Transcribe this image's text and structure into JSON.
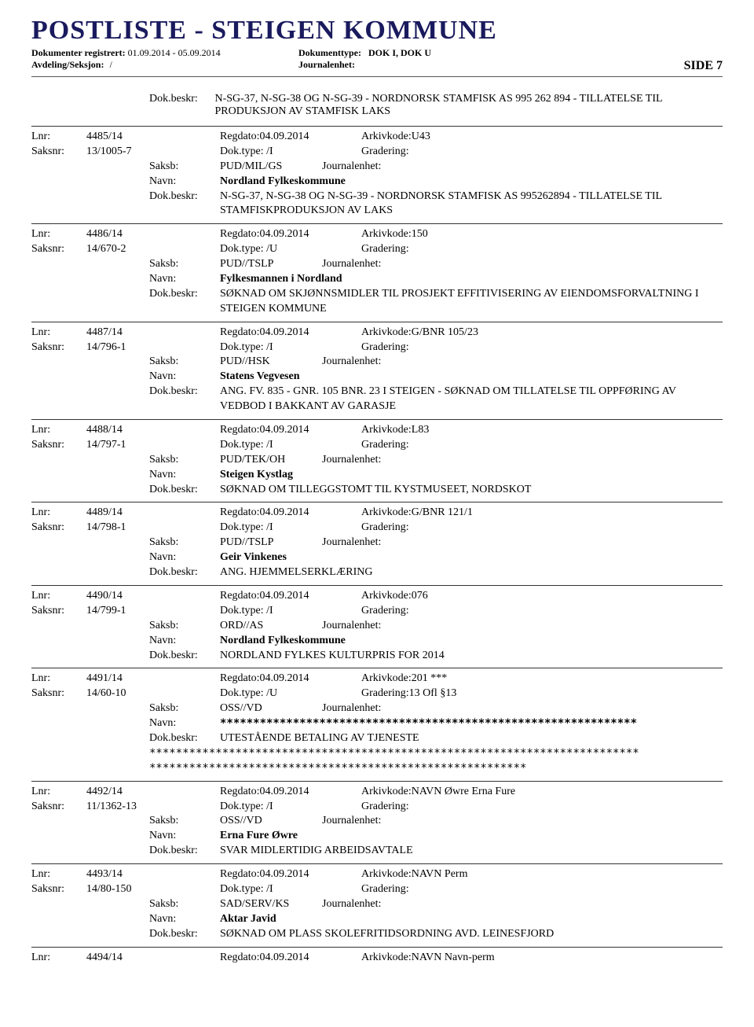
{
  "header": {
    "title": "POSTLISTE - STEIGEN KOMMUNE",
    "dok_reg_label": "Dokumenter registrert:",
    "dok_reg_value": "01.09.2014 - 05.09.2014",
    "avd_label": "Avdeling/Seksjon:",
    "avd_value": "/",
    "doktype_label": "Dokumenttype:",
    "doktype_value": "DOK I, DOK U",
    "journ_label": "Journalenhet:",
    "side": "SIDE 7"
  },
  "topbeskr": {
    "label": "Dok.beskr:",
    "text": "N-SG-37, N-SG-38 OG N-SG-39 - NORDNORSK STAMFISK AS 995 262 894 - TILLATELSE TIL PRODUKSJON AV STAMFISK LAKS"
  },
  "labels": {
    "lnr": "Lnr:",
    "saksnr": "Saksnr:",
    "saksb": "Saksb:",
    "navn": "Navn:",
    "beskr": "Dok.beskr:",
    "regdato": "Regdato:",
    "doktype": "Dok.type:",
    "arkiv": "Arkivkode:",
    "grad": "Gradering:",
    "journ": "Journalenhet:"
  },
  "entries": [
    {
      "lnr": "4485/14",
      "saksnr": "13/1005-7",
      "regdato": "04.09.2014",
      "doktype": "/I",
      "arkiv": "U43",
      "grad": "",
      "saksb": "PUD/MIL/GS",
      "journ": "",
      "navn": "Nordland Fylkeskommune",
      "beskr": "N-SG-37, N-SG-38 OG N-SG-39 - NORDNORSK STAMFISK AS 995262894 - TILLATELSE TIL STAMFISKPRODUKSJON AV LAKS"
    },
    {
      "lnr": "4486/14",
      "saksnr": "14/670-2",
      "regdato": "04.09.2014",
      "doktype": "/U",
      "arkiv": "150",
      "grad": "",
      "saksb": "PUD//TSLP",
      "journ": "",
      "navn": "Fylkesmannen i Nordland",
      "beskr": "SØKNAD OM SKJØNNSMIDLER TIL PROSJEKT EFFITIVISERING AV EIENDOMSFORVALTNING I STEIGEN KOMMUNE"
    },
    {
      "lnr": "4487/14",
      "saksnr": "14/796-1",
      "regdato": "04.09.2014",
      "doktype": "/I",
      "arkiv": "G/BNR 105/23",
      "grad": "",
      "saksb": "PUD//HSK",
      "journ": "",
      "navn": "Statens Vegvesen",
      "beskr": "ANG. FV. 835 - GNR. 105 BNR. 23 I STEIGEN - SØKNAD OM TILLATELSE TIL OPPFØRING AV VEDBOD I BAKKANT AV GARASJE"
    },
    {
      "lnr": "4488/14",
      "saksnr": "14/797-1",
      "regdato": "04.09.2014",
      "doktype": "/I",
      "arkiv": "L83",
      "grad": "",
      "saksb": "PUD/TEK/OH",
      "journ": "",
      "navn": "Steigen Kystlag",
      "beskr": "SØKNAD OM TILLEGGSTOMT TIL KYSTMUSEET, NORDSKOT"
    },
    {
      "lnr": "4489/14",
      "saksnr": "14/798-1",
      "regdato": "04.09.2014",
      "doktype": "/I",
      "arkiv": "G/BNR 121/1",
      "grad": "",
      "saksb": "PUD//TSLP",
      "journ": "",
      "navn": "Geir Vinkenes",
      "beskr": "ANG. HJEMMELSERKLÆRING"
    },
    {
      "lnr": "4490/14",
      "saksnr": "14/799-1",
      "regdato": "04.09.2014",
      "doktype": "/I",
      "arkiv": "076",
      "grad": "",
      "saksb": "ORD//AS",
      "journ": "",
      "navn": "Nordland Fylkeskommune",
      "beskr": "NORDLAND FYLKES KULTURPRIS FOR 2014"
    },
    {
      "lnr": "4491/14",
      "saksnr": "14/60-10",
      "regdato": "04.09.2014",
      "doktype": "/U",
      "arkiv": "201 ***",
      "grad": "13 Ofl §13",
      "saksb": "OSS//VD",
      "journ": "",
      "navn": "***************************************************************",
      "beskr": "UTESTÅENDE BETALING AV TJENESTE",
      "extra1": "**************************************************************************",
      "extra2": "*********************************************************"
    },
    {
      "lnr": "4492/14",
      "saksnr": "11/1362-13",
      "regdato": "04.09.2014",
      "doktype": "/I",
      "arkiv": "NAVN Øwre Erna Fure",
      "grad": "",
      "saksb": "OSS//VD",
      "journ": "",
      "navn": "Erna Fure Øwre",
      "beskr": "SVAR MIDLERTIDIG ARBEIDSAVTALE"
    },
    {
      "lnr": "4493/14",
      "saksnr": "14/80-150",
      "regdato": "04.09.2014",
      "doktype": "/I",
      "arkiv": "NAVN Perm",
      "grad": "",
      "saksb": "SAD/SERV/KS",
      "journ": "",
      "navn": "Aktar Javid",
      "beskr": "SØKNAD OM PLASS SKOLEFRITIDSORDNING AVD. LEINESFJORD"
    }
  ],
  "tail": {
    "lnr": "4494/14",
    "regdato": "04.09.2014",
    "arkiv": "NAVN Navn-perm"
  }
}
